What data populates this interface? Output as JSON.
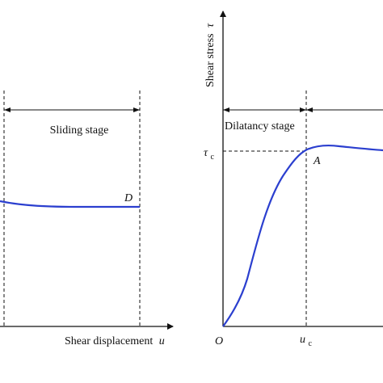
{
  "left_panel": {
    "stage_label": "Sliding stage",
    "point_label": "D",
    "x_axis_label": "Shear displacement",
    "x_axis_symbol": "u"
  },
  "right_panel": {
    "y_axis_label": "Shear stress",
    "y_axis_symbol": "τ",
    "stage_label": "Dilatancy stage",
    "tau_c_label": "τ",
    "tau_c_subscript": "c",
    "peak_label": "A",
    "origin_label": "O",
    "u_c_label": "u",
    "u_c_subscript": "c"
  },
  "colors": {
    "curve": "#2b3fcf",
    "axis": "#111111",
    "dashed": "#111111"
  }
}
